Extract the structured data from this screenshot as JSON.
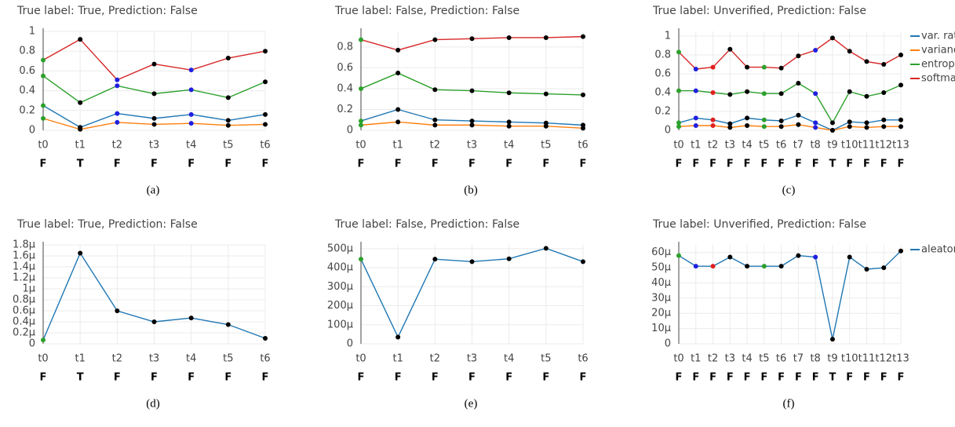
{
  "chart_data": [
    {
      "type": "line",
      "title": "True label: True, Prediction: False",
      "caption": "(a)",
      "categories": [
        "t0",
        "t1",
        "t2",
        "t3",
        "t4",
        "t5",
        "t6"
      ],
      "labels": [
        "F",
        "T",
        "F",
        "F",
        "F",
        "F",
        "F"
      ],
      "ylim": [
        0,
        1
      ],
      "yticks": [
        0,
        0.2,
        0.4,
        0.6,
        0.8,
        1
      ],
      "grid": true,
      "point_colors": [
        "#2ca02c",
        "#000000",
        "#1f1fe0",
        "#000000",
        "#1f1fe0",
        "#000000",
        "#000000"
      ],
      "series": [
        {
          "color": "#1f77b4",
          "values": [
            0.25,
            0.03,
            0.17,
            0.12,
            0.16,
            0.1,
            0.16
          ]
        },
        {
          "color": "#ff7f0e",
          "values": [
            0.12,
            0.01,
            0.08,
            0.06,
            0.07,
            0.05,
            0.06
          ]
        },
        {
          "color": "#2ca02c",
          "values": [
            0.55,
            0.28,
            0.45,
            0.37,
            0.41,
            0.33,
            0.49
          ]
        },
        {
          "color": "#d62728",
          "values": [
            0.71,
            0.92,
            0.51,
            0.67,
            0.61,
            0.73,
            0.8
          ]
        }
      ]
    },
    {
      "type": "line",
      "title": "True label: False, Prediction: False",
      "caption": "(b)",
      "categories": [
        "t0",
        "t1",
        "t2",
        "t3",
        "t4",
        "t5",
        "t6"
      ],
      "labels": [
        "F",
        "F",
        "F",
        "F",
        "F",
        "F",
        "F"
      ],
      "ylim": [
        0,
        0.95
      ],
      "yticks": [
        0,
        0.2,
        0.4,
        0.6,
        0.8
      ],
      "grid": true,
      "point_colors": [
        "#2ca02c",
        "#000000",
        "#000000",
        "#000000",
        "#000000",
        "#000000",
        "#000000"
      ],
      "series": [
        {
          "color": "#1f77b4",
          "values": [
            0.09,
            0.2,
            0.1,
            0.09,
            0.08,
            0.07,
            0.05
          ]
        },
        {
          "color": "#ff7f0e",
          "values": [
            0.05,
            0.08,
            0.05,
            0.05,
            0.04,
            0.04,
            0.02
          ]
        },
        {
          "color": "#2ca02c",
          "values": [
            0.4,
            0.55,
            0.39,
            0.38,
            0.36,
            0.35,
            0.34
          ]
        },
        {
          "color": "#d62728",
          "values": [
            0.87,
            0.77,
            0.87,
            0.88,
            0.89,
            0.89,
            0.9
          ]
        }
      ]
    },
    {
      "type": "line",
      "title": "True label: Unverified, Prediction: False",
      "caption": "(c)",
      "categories": [
        "t0",
        "t1",
        "t2",
        "t3",
        "t4",
        "t5",
        "t6",
        "t7",
        "t8",
        "t9",
        "t10",
        "t11",
        "t12",
        "t13"
      ],
      "labels": [
        "F",
        "F",
        "F",
        "F",
        "F",
        "F",
        "F",
        "F",
        "F",
        "T",
        "F",
        "F",
        "F",
        "F"
      ],
      "ylim": [
        0,
        1.05
      ],
      "yticks": [
        0,
        0.2,
        0.4,
        0.6,
        0.8,
        1
      ],
      "grid": true,
      "legend": "right",
      "point_colors": [
        "#2ca02c",
        "#1f1fe0",
        "#e01f1f",
        "#000000",
        "#000000",
        "#2ca02c",
        "#000000",
        "#000000",
        "#1f1fe0",
        "#000000",
        "#000000",
        "#000000",
        "#000000",
        "#000000"
      ],
      "series": [
        {
          "name": "var. ratio",
          "color": "#1f77b4",
          "values": [
            0.08,
            0.13,
            0.11,
            0.07,
            0.13,
            0.11,
            0.1,
            0.16,
            0.08,
            0,
            0.09,
            0.08,
            0.11,
            0.11
          ]
        },
        {
          "name": "variance",
          "color": "#ff7f0e",
          "values": [
            0.04,
            0.05,
            0.05,
            0.03,
            0.05,
            0.04,
            0.04,
            0.06,
            0.03,
            0,
            0.04,
            0.03,
            0.04,
            0.04
          ]
        },
        {
          "name": "entropy",
          "color": "#2ca02c",
          "values": [
            0.42,
            0.42,
            0.4,
            0.38,
            0.41,
            0.39,
            0.39,
            0.5,
            0.39,
            0.08,
            0.41,
            0.36,
            0.4,
            0.48
          ]
        },
        {
          "name": "softmax",
          "color": "#d62728",
          "values": [
            0.83,
            0.65,
            0.67,
            0.86,
            0.67,
            0.67,
            0.66,
            0.79,
            0.85,
            0.98,
            0.84,
            0.73,
            0.7,
            0.8
          ]
        }
      ]
    },
    {
      "type": "line",
      "title": "True label: True, Prediction: False",
      "caption": "(d)",
      "categories": [
        "t0",
        "t1",
        "t2",
        "t3",
        "t4",
        "t5",
        "t6"
      ],
      "labels": [
        "F",
        "T",
        "F",
        "F",
        "F",
        "F",
        "F"
      ],
      "ylim": [
        0,
        1.8
      ],
      "grid": true,
      "yticks": [
        0,
        {
          "value": 0.2,
          "label": "0.2μ"
        },
        {
          "value": 0.4,
          "label": "0.4μ"
        },
        {
          "value": 0.6,
          "label": "0.6μ"
        },
        {
          "value": 0.8,
          "label": "0.8μ"
        },
        {
          "value": 1,
          "label": "1μ"
        },
        {
          "value": 1.2,
          "label": "1.2μ"
        },
        {
          "value": 1.4,
          "label": "1.4μ"
        },
        {
          "value": 1.6,
          "label": "1.6μ"
        },
        {
          "value": 1.8,
          "label": "1.8μ"
        }
      ],
      "point_colors": [
        "#2ca02c",
        "#000000",
        "#000000",
        "#000000",
        "#000000",
        "#000000",
        "#000000"
      ],
      "series": [
        {
          "color": "#1f77b4",
          "values": [
            0.07,
            1.65,
            0.6,
            0.4,
            0.47,
            0.35,
            0.1
          ]
        }
      ]
    },
    {
      "type": "line",
      "title": "True label: False, Prediction: False",
      "caption": "(e)",
      "categories": [
        "t0",
        "t1",
        "t2",
        "t3",
        "t4",
        "t5",
        "t6"
      ],
      "labels": [
        "F",
        "F",
        "F",
        "F",
        "F",
        "F",
        "F"
      ],
      "ylim": [
        0,
        520
      ],
      "grid": true,
      "yticks": [
        0,
        {
          "value": 100,
          "label": "100μ"
        },
        {
          "value": 200,
          "label": "200μ"
        },
        {
          "value": 300,
          "label": "300μ"
        },
        {
          "value": 400,
          "label": "400μ"
        },
        {
          "value": 500,
          "label": "500μ"
        }
      ],
      "point_colors": [
        "#2ca02c",
        "#000000",
        "#000000",
        "#000000",
        "#000000",
        "#000000",
        "#000000"
      ],
      "series": [
        {
          "color": "#1f77b4",
          "values": [
            445,
            35,
            445,
            432,
            447,
            502,
            432
          ]
        }
      ]
    },
    {
      "type": "line",
      "title": "True label: Unverified, Prediction: False",
      "caption": "(f)",
      "categories": [
        "t0",
        "t1",
        "t2",
        "t3",
        "t4",
        "t5",
        "t6",
        "t7",
        "t8",
        "t9",
        "t10",
        "t11",
        "t12",
        "t13"
      ],
      "labels": [
        "F",
        "F",
        "F",
        "F",
        "F",
        "F",
        "F",
        "F",
        "F",
        "T",
        "F",
        "F",
        "F",
        "F"
      ],
      "ylim": [
        0,
        65
      ],
      "grid": true,
      "legend": "right",
      "yticks": [
        0,
        {
          "value": 10,
          "label": "10μ"
        },
        {
          "value": 20,
          "label": "20μ"
        },
        {
          "value": 30,
          "label": "30μ"
        },
        {
          "value": 40,
          "label": "40μ"
        },
        {
          "value": 50,
          "label": "50μ"
        },
        {
          "value": 60,
          "label": "60μ"
        }
      ],
      "point_colors": [
        "#2ca02c",
        "#1f1fe0",
        "#e01f1f",
        "#000000",
        "#000000",
        "#2ca02c",
        "#000000",
        "#000000",
        "#1f1fe0",
        "#000000",
        "#000000",
        "#000000",
        "#000000",
        "#000000"
      ],
      "series": [
        {
          "name": "aleatoric",
          "color": "#1f77b4",
          "values": [
            58,
            51,
            51,
            57,
            51,
            51,
            51,
            58,
            57,
            3,
            57,
            49,
            50,
            61
          ]
        }
      ]
    }
  ]
}
